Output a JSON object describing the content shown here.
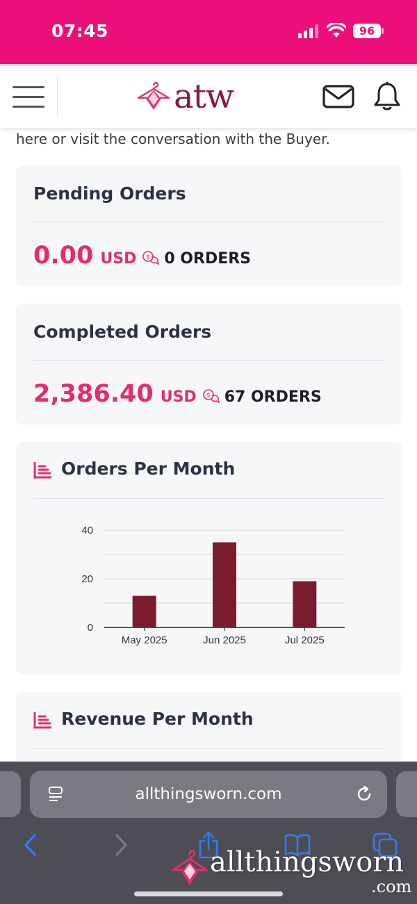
{
  "status_bar": {
    "time": "07:45",
    "battery": "96"
  },
  "header": {
    "logo_text": "atw"
  },
  "intro_text": "here or visit the conversation with the Buyer.",
  "pending_orders": {
    "title": "Pending Orders",
    "amount": "0.00",
    "currency": "USD",
    "count": "0 ORDERS"
  },
  "completed_orders": {
    "title": "Completed Orders",
    "amount": "2,386.40",
    "currency": "USD",
    "count": "67 ORDERS"
  },
  "orders_chart": {
    "title": "Orders Per Month"
  },
  "revenue_chart": {
    "title": "Revenue Per Month"
  },
  "chart_data": {
    "type": "bar",
    "title": "Orders Per Month",
    "categories": [
      "May 2025",
      "Jun 2025",
      "Jul 2025"
    ],
    "values": [
      13,
      35,
      19
    ],
    "ylim": [
      0,
      40
    ],
    "yticks": [
      0,
      20,
      40
    ],
    "grid": true,
    "bar_color": "#7b1c2e"
  },
  "browser": {
    "url": "allthingsworn.com",
    "watermark": "allthingsworn",
    "watermark_sub": ".com"
  },
  "colors": {
    "brand_pink": "#ec0f7a",
    "accent": "#e52c6b",
    "logo": "#8b1a3a",
    "ios_blue": "#2f7df6"
  }
}
